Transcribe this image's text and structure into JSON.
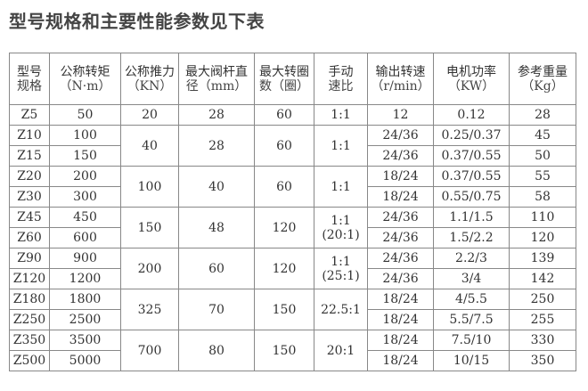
{
  "title": "型号规格和主要性能参数见下表",
  "headers": [
    {
      "label": "型号",
      "unit": "规格"
    },
    {
      "label": "公称转矩",
      "unit": "（N·m）"
    },
    {
      "label": "公称推力",
      "unit": "（KN）"
    },
    {
      "label": "最大阀杆直",
      "unit": "径（mm）"
    },
    {
      "label": "最大转圈",
      "unit": "数（圈）"
    },
    {
      "label": "手动",
      "unit": "速比"
    },
    {
      "label": "输出转速",
      "unit": "（r/min）"
    },
    {
      "label": "电机功率",
      "unit": "（KW）"
    },
    {
      "label": "参考重量",
      "unit": "（Kg）"
    }
  ],
  "groups": [
    {
      "thrust": "20",
      "diameter": "28",
      "turns": "60",
      "ratio": "1:1",
      "ratio2": "",
      "rows": [
        {
          "model": "Z5",
          "torque": "50",
          "speed": "12",
          "power": "0.12",
          "weight": "28"
        }
      ]
    },
    {
      "thrust": "40",
      "diameter": "28",
      "turns": "60",
      "ratio": "1:1",
      "ratio2": "",
      "rows": [
        {
          "model": "Z10",
          "torque": "100",
          "speed": "24/36",
          "power": "0.25/0.37",
          "weight": "45"
        },
        {
          "model": "Z15",
          "torque": "150",
          "speed": "24/36",
          "power": "0.37/0.55",
          "weight": "50"
        }
      ]
    },
    {
      "thrust": "100",
      "diameter": "40",
      "turns": "60",
      "ratio": "1:1",
      "ratio2": "",
      "rows": [
        {
          "model": "Z20",
          "torque": "200",
          "speed": "18/24",
          "power": "0.37/0.55",
          "weight": "55"
        },
        {
          "model": "Z30",
          "torque": "300",
          "speed": "18/24",
          "power": "0.55/0.75",
          "weight": "58"
        }
      ]
    },
    {
      "thrust": "150",
      "diameter": "48",
      "turns": "120",
      "ratio": "1:1",
      "ratio2": "(20:1)",
      "rows": [
        {
          "model": "Z45",
          "torque": "450",
          "speed": "24/36",
          "power": "1.1/1.5",
          "weight": "110"
        },
        {
          "model": "Z60",
          "torque": "600",
          "speed": "24/36",
          "power": "1.5/2.2",
          "weight": "120"
        }
      ]
    },
    {
      "thrust": "200",
      "diameter": "60",
      "turns": "120",
      "ratio": "1:1",
      "ratio2": "(25:1)",
      "rows": [
        {
          "model": "Z90",
          "torque": "900",
          "speed": "24/36",
          "power": "2.2/3",
          "weight": "139"
        },
        {
          "model": "Z120",
          "torque": "1200",
          "speed": "24/36",
          "power": "3/4",
          "weight": "142"
        }
      ]
    },
    {
      "thrust": "325",
      "diameter": "70",
      "turns": "150",
      "ratio": "22.5:1",
      "ratio2": "",
      "rows": [
        {
          "model": "Z180",
          "torque": "1800",
          "speed": "18/24",
          "power": "4/5.5",
          "weight": "250"
        },
        {
          "model": "Z250",
          "torque": "2500",
          "speed": "18/24",
          "power": "5.5/7.5",
          "weight": "255"
        }
      ]
    },
    {
      "thrust": "700",
      "diameter": "80",
      "turns": "150",
      "ratio": "20:1",
      "ratio2": "",
      "rows": [
        {
          "model": "Z350",
          "torque": "3500",
          "speed": "18/24",
          "power": "7.5/10",
          "weight": "330"
        },
        {
          "model": "Z500",
          "torque": "5000",
          "speed": "18/24",
          "power": "10/15",
          "weight": "350"
        }
      ]
    }
  ]
}
